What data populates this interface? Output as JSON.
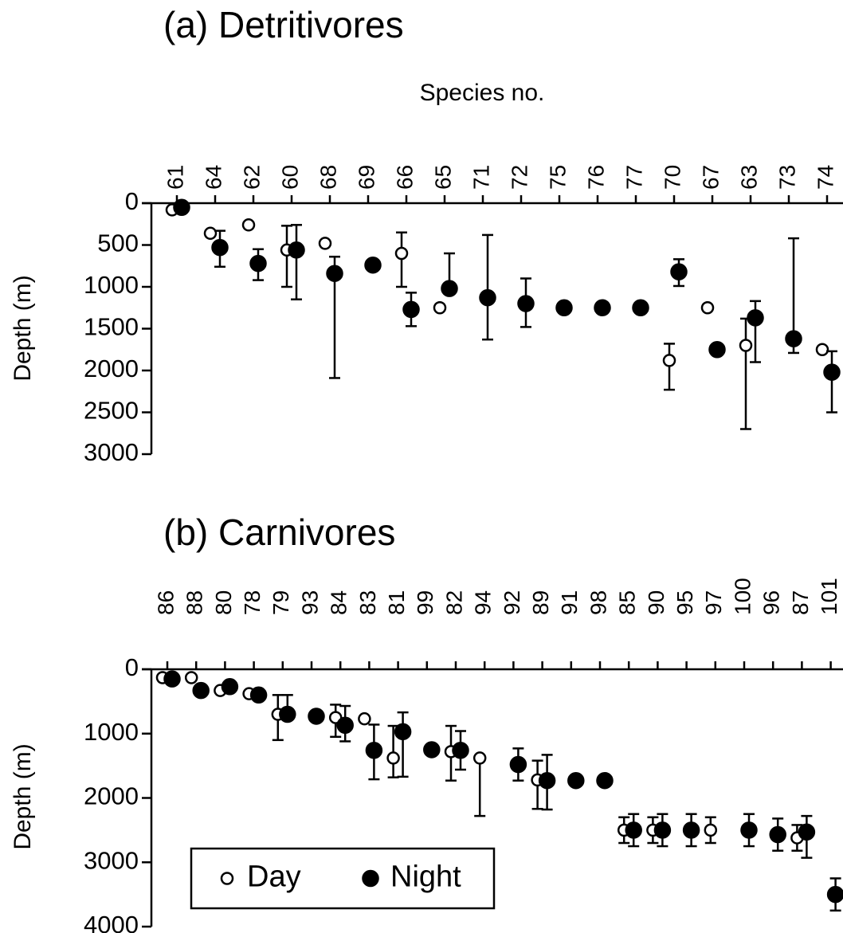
{
  "chart_data": [
    {
      "type": "scatter",
      "title": "(a) Detritivores",
      "x_label": "Species no.",
      "y_label": "Depth (m)",
      "categories": [
        "61",
        "64",
        "62",
        "60",
        "68",
        "69",
        "66",
        "65",
        "71",
        "72",
        "75",
        "76",
        "77",
        "70",
        "67",
        "63",
        "73",
        "74"
      ],
      "ylim": [
        0,
        3000
      ],
      "yticks": [
        0,
        500,
        1000,
        1500,
        2000,
        2500,
        3000
      ],
      "y_inverted": true,
      "legend": false,
      "series": [
        {
          "name": "Day",
          "color": "#000000",
          "marker": "open",
          "values": [
            80,
            360,
            260,
            560,
            480,
            null,
            600,
            1250,
            null,
            null,
            null,
            null,
            null,
            1880,
            1250,
            1700,
            null,
            1750
          ],
          "errors": [
            null,
            null,
            null,
            [
              290,
              440
            ],
            null,
            null,
            [
              250,
              400
            ],
            null,
            null,
            null,
            null,
            null,
            null,
            [
              200,
              350
            ],
            null,
            [
              320,
              1000
            ],
            null,
            null
          ]
        },
        {
          "name": "Night",
          "color": "#000000",
          "marker": "filled",
          "values": [
            50,
            530,
            720,
            560,
            840,
            740,
            1270,
            1020,
            1130,
            1200,
            1250,
            1250,
            1250,
            820,
            1750,
            1370,
            1620,
            2020
          ],
          "errors": [
            null,
            [
              200,
              230
            ],
            [
              170,
              200
            ],
            [
              300,
              590
            ],
            [
              200,
              1250
            ],
            null,
            [
              200,
              200
            ],
            [
              420,
              0
            ],
            [
              750,
              500
            ],
            [
              300,
              280
            ],
            null,
            null,
            null,
            [
              150,
              170
            ],
            null,
            [
              200,
              530
            ],
            [
              1200,
              170
            ],
            [
              250,
              480
            ]
          ]
        }
      ]
    },
    {
      "type": "scatter",
      "title": "(b) Carnivores",
      "y_label": "Depth (m)",
      "categories": [
        "86",
        "88",
        "80",
        "78",
        "79",
        "93",
        "84",
        "83",
        "81",
        "99",
        "82",
        "94",
        "92",
        "89",
        "91",
        "98",
        "85",
        "90",
        "95",
        "97",
        "100",
        "96",
        "87",
        "101"
      ],
      "ylim": [
        0,
        4000
      ],
      "yticks": [
        0,
        1000,
        2000,
        3000,
        4000
      ],
      "y_inverted": true,
      "legend": true,
      "legend_loc": "lower left",
      "series": [
        {
          "name": "Day",
          "color": "#000000",
          "marker": "open",
          "values": [
            130,
            130,
            330,
            380,
            700,
            null,
            750,
            770,
            1380,
            null,
            1280,
            1380,
            null,
            1720,
            null,
            null,
            2500,
            2500,
            null,
            2500,
            null,
            null,
            2620,
            null
          ],
          "errors": [
            null,
            null,
            null,
            null,
            [
              300,
              400
            ],
            null,
            [
              200,
              300
            ],
            null,
            [
              500,
              300
            ],
            null,
            [
              400,
              450
            ],
            [
              0,
              900
            ],
            null,
            [
              300,
              450
            ],
            null,
            null,
            [
              200,
              200
            ],
            [
              200,
              200
            ],
            null,
            [
              200,
              200
            ],
            null,
            null,
            [
              200,
              200
            ],
            null
          ]
        },
        {
          "name": "Night",
          "color": "#000000",
          "marker": "filled",
          "values": [
            150,
            330,
            270,
            400,
            700,
            730,
            870,
            1260,
            970,
            1250,
            1260,
            null,
            1480,
            1730,
            1730,
            1730,
            2500,
            2500,
            2500,
            null,
            2500,
            2570,
            2530,
            3500
          ],
          "errors": [
            null,
            null,
            null,
            null,
            [
              300,
              0
            ],
            null,
            [
              300,
              250
            ],
            [
              400,
              450
            ],
            [
              300,
              700
            ],
            null,
            [
              300,
              300
            ],
            null,
            [
              250,
              250
            ],
            [
              400,
              450
            ],
            null,
            null,
            [
              250,
              250
            ],
            [
              250,
              250
            ],
            [
              250,
              250
            ],
            null,
            [
              250,
              250
            ],
            [
              250,
              250
            ],
            [
              250,
              400
            ],
            [
              250,
              250
            ]
          ]
        }
      ]
    }
  ]
}
